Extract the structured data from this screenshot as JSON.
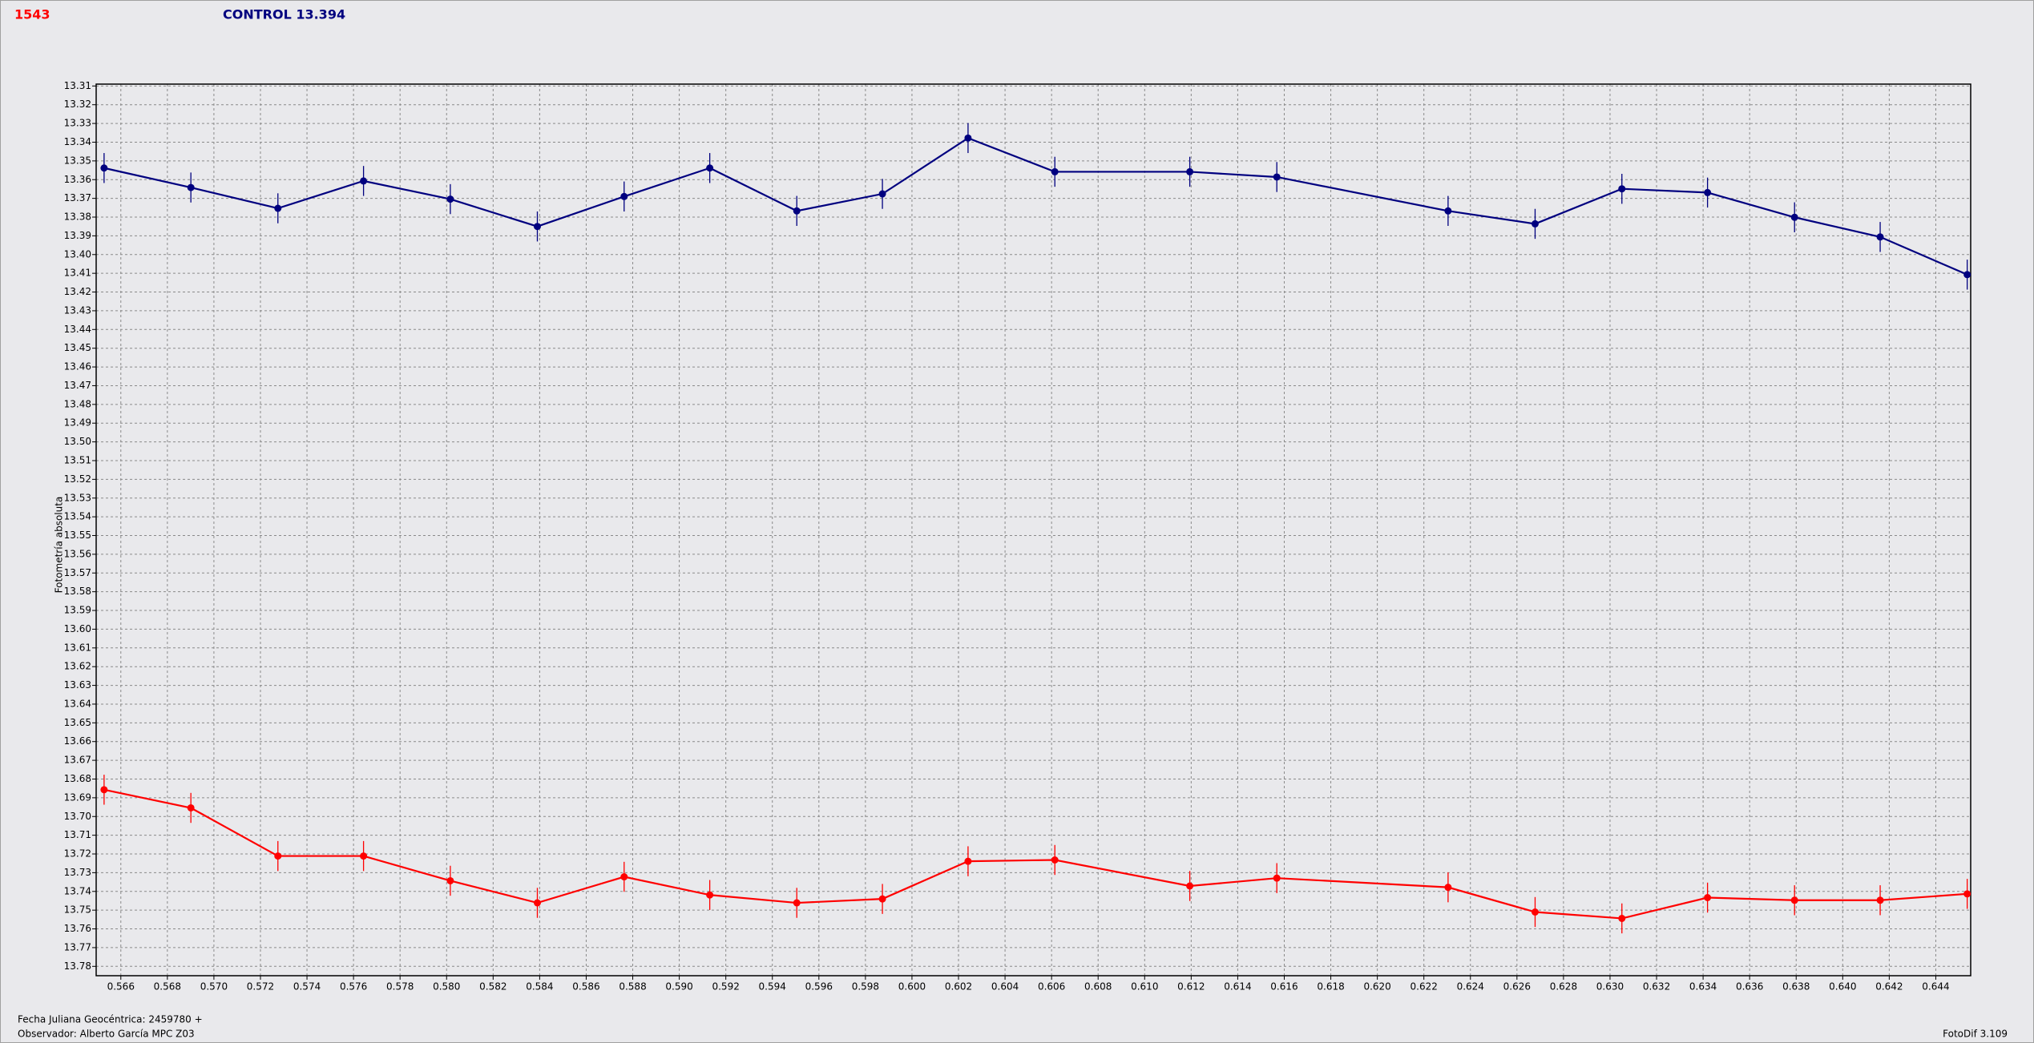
{
  "chart_data": {
    "type": "line",
    "y_label": "Fotometría absoluta",
    "x_label": "Fecha Juliana Geocéntrica: 2459780 +",
    "observer": "Observador: Alberto García MPC Z03",
    "software": "FotoDif 3.109",
    "x": [
      0.56528,
      0.56901,
      0.57275,
      0.57643,
      0.58016,
      0.5839,
      0.58763,
      0.59131,
      0.59505,
      0.59873,
      0.60241,
      0.60614,
      0.61194,
      0.61568,
      0.62304,
      0.62678,
      0.63051,
      0.63419,
      0.63793,
      0.64161,
      0.64535
    ],
    "series": [
      {
        "name": "1543",
        "color": "#ff0000",
        "values": [
          13.6857,
          13.6954,
          13.7211,
          13.7211,
          13.7343,
          13.7461,
          13.7322,
          13.7419,
          13.7461,
          13.744,
          13.7239,
          13.7232,
          13.7371,
          13.7329,
          13.7378,
          13.751,
          13.7544,
          13.7433,
          13.7447,
          13.7447,
          13.7413
        ],
        "errors": [
          0.008,
          0.008,
          0.008,
          0.008,
          0.008,
          0.008,
          0.008,
          0.008,
          0.008,
          0.008,
          0.008,
          0.008,
          0.008,
          0.008,
          0.008,
          0.008,
          0.008,
          0.008,
          0.008,
          0.008,
          0.008
        ]
      },
      {
        "name": "CONTROL 13.394",
        "color": "#00007f",
        "values": [
          13.3538,
          13.3642,
          13.3753,
          13.3607,
          13.3704,
          13.385,
          13.369,
          13.3538,
          13.3767,
          13.3676,
          13.3378,
          13.3558,
          13.3558,
          13.3586,
          13.3767,
          13.3836,
          13.3649,
          13.3669,
          13.3801,
          13.3906,
          13.4107
        ],
        "errors": [
          0.008,
          0.008,
          0.008,
          0.008,
          0.008,
          0.008,
          0.008,
          0.008,
          0.008,
          0.008,
          0.008,
          0.008,
          0.008,
          0.008,
          0.008,
          0.008,
          0.008,
          0.008,
          0.008,
          0.008,
          0.008
        ]
      }
    ],
    "xlim": [
      0.56494,
      0.6455
    ],
    "ylim": [
      13.309,
      13.785
    ],
    "y_inverted": true,
    "grid": true,
    "yticks": [
      13.31,
      13.32,
      13.33,
      13.34,
      13.35,
      13.36,
      13.37,
      13.38,
      13.39,
      {
        "value": 13.4,
        "label": "13.40"
      },
      13.41,
      13.42,
      13.43,
      13.44,
      13.45,
      13.46,
      13.47,
      13.48,
      13.49,
      {
        "value": 13.5,
        "label": "13.50"
      },
      13.51,
      13.52,
      13.53,
      13.54,
      13.55,
      13.56,
      13.57,
      13.58,
      13.59,
      {
        "value": 13.6,
        "label": "13.60"
      },
      13.61,
      13.62,
      13.63,
      13.64,
      13.65,
      13.66,
      13.67,
      13.68,
      13.69,
      {
        "value": 13.7,
        "label": "13.70"
      },
      13.71,
      13.72,
      13.73,
      13.74,
      13.75,
      13.76,
      13.77,
      13.78
    ],
    "xticks": [
      0.566,
      0.568,
      {
        "value": 0.57,
        "label": "0.570"
      },
      0.572,
      0.574,
      0.576,
      0.578,
      {
        "value": 0.58,
        "label": "0.580"
      },
      0.582,
      0.584,
      0.586,
      0.588,
      {
        "value": 0.59,
        "label": "0.590"
      },
      0.592,
      0.594,
      0.596,
      0.598,
      {
        "value": 0.6,
        "label": "0.600"
      },
      0.602,
      0.604,
      0.606,
      0.608,
      {
        "value": 0.61,
        "label": "0.610"
      },
      0.612,
      0.614,
      0.616,
      0.618,
      {
        "value": 0.62,
        "label": "0.620"
      },
      0.622,
      0.624,
      0.626,
      0.628,
      {
        "value": 0.63,
        "label": "0.630"
      },
      0.632,
      0.634,
      0.636,
      0.638,
      {
        "value": 0.64,
        "label": "0.640"
      },
      0.642,
      0.644
    ]
  }
}
